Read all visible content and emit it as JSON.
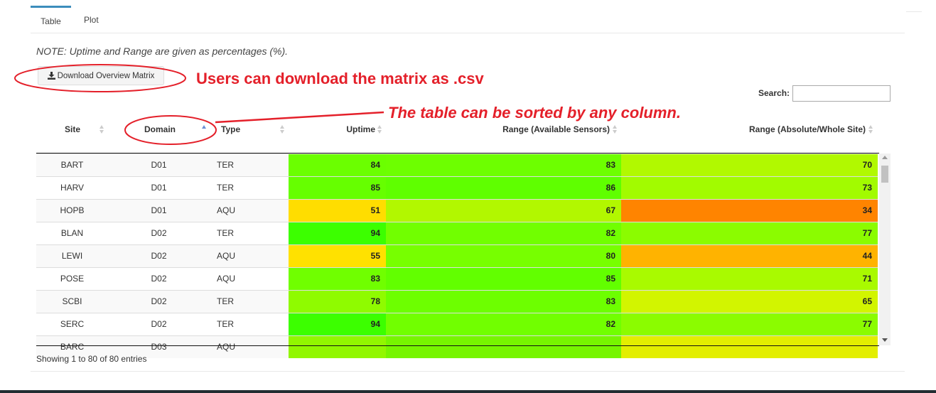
{
  "tabs": [
    {
      "label": "Table",
      "active": true
    },
    {
      "label": "Plot",
      "active": false
    }
  ],
  "note": "NOTE: Uptime and Range are given as percentages (%).",
  "download_button": {
    "label": "Download Overview Matrix",
    "icon": "download-icon"
  },
  "annotations": {
    "download": "Users can download the matrix as .csv",
    "sort": "The table can be sorted by any column."
  },
  "search": {
    "label": "Search:",
    "value": ""
  },
  "table": {
    "columns": [
      "Site",
      "Domain",
      "Type",
      "Uptime",
      "Range (Available Sensors)",
      "Range (Absolute/Whole Site)"
    ],
    "sorted_column": "Domain",
    "sort_direction": "ascending",
    "rows": [
      {
        "site": "BART",
        "domain": "D01",
        "type": "TER",
        "uptime": "84",
        "range_available": "83",
        "range_absolute": "70",
        "colors": [
          "#6bff00",
          "#6dff00",
          "#b1f900"
        ]
      },
      {
        "site": "HARV",
        "domain": "D01",
        "type": "TER",
        "uptime": "85",
        "range_available": "86",
        "range_absolute": "73",
        "colors": [
          "#66ff00",
          "#5fff00",
          "#a2fb00"
        ]
      },
      {
        "site": "HOPB",
        "domain": "D01",
        "type": "AQU",
        "uptime": "51",
        "range_available": "67",
        "range_absolute": "34",
        "colors": [
          "#ffdd00",
          "#b2f700",
          "#ff8400"
        ]
      },
      {
        "site": "BLAN",
        "domain": "D02",
        "type": "TER",
        "uptime": "94",
        "range_available": "82",
        "range_absolute": "77",
        "colors": [
          "#3cff00",
          "#71ff00",
          "#8bfc00"
        ]
      },
      {
        "site": "LEWI",
        "domain": "D02",
        "type": "AQU",
        "uptime": "55",
        "range_available": "80",
        "range_absolute": "44",
        "colors": [
          "#ffe100",
          "#77ff00",
          "#ffb300"
        ]
      },
      {
        "site": "POSE",
        "domain": "D02",
        "type": "AQU",
        "uptime": "83",
        "range_available": "85",
        "range_absolute": "71",
        "colors": [
          "#70ff00",
          "#62ff00",
          "#a9fa00"
        ]
      },
      {
        "site": "SCBI",
        "domain": "D02",
        "type": "TER",
        "uptime": "78",
        "range_available": "83",
        "range_absolute": "65",
        "colors": [
          "#8ffb00",
          "#6dff00",
          "#d2f500"
        ]
      },
      {
        "site": "SERC",
        "domain": "D02",
        "type": "TER",
        "uptime": "94",
        "range_available": "82",
        "range_absolute": "77",
        "colors": [
          "#3cff00",
          "#71ff00",
          "#8bfc00"
        ]
      },
      {
        "site": "BARC",
        "domain": "D03",
        "type": "AQU",
        "uptime": "",
        "range_available": "",
        "range_absolute": "",
        "colors": [
          "#92f700",
          "#77f500",
          "#e3ee00"
        ]
      }
    ]
  },
  "info": "Showing 1 to 80 of 80 entries"
}
